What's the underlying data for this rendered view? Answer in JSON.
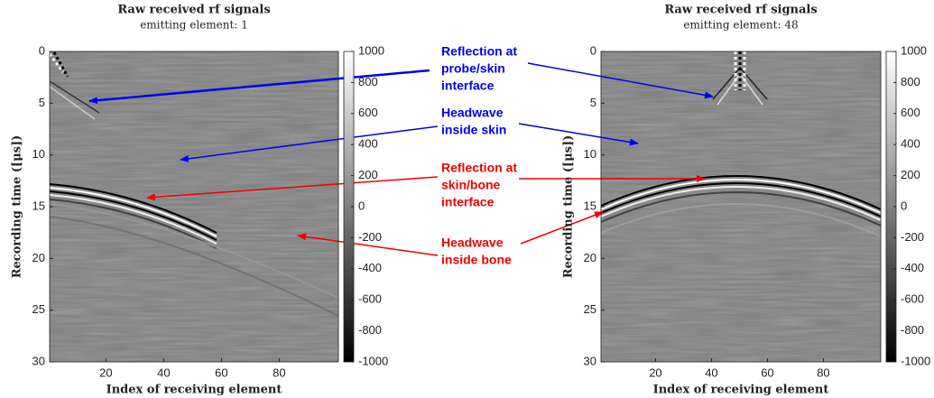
{
  "chart_data": [
    {
      "type": "image",
      "title": "Raw received rf signals",
      "subtitle": "emitting element: 1",
      "x_label": "Index of receiving element",
      "y_label": "Recording time ([μs])",
      "xlim": [
        0.5,
        100.5
      ],
      "xticks": [
        20,
        40,
        60,
        80
      ],
      "ylim": [
        0,
        30
      ],
      "yticks": [
        0,
        5,
        10,
        15,
        20,
        25,
        30
      ],
      "y_reversed": true,
      "clim": [
        -1000,
        1000
      ],
      "cticks": [
        -1000,
        -800,
        -600,
        -400,
        -200,
        0,
        200,
        400,
        600,
        800,
        1000
      ],
      "colormap": "gray"
    },
    {
      "type": "image",
      "title": "Raw received rf signals",
      "subtitle": "emitting element: 48",
      "x_label": "Index of receiving element",
      "y_label": "Recording time ([μs])",
      "xlim": [
        0.5,
        100.5
      ],
      "xticks": [
        20,
        40,
        60,
        80
      ],
      "ylim": [
        0,
        30
      ],
      "yticks": [
        0,
        5,
        10,
        15,
        20,
        25,
        30
      ],
      "y_reversed": true,
      "clim": [
        -1000,
        1000
      ],
      "cticks": [
        -1000,
        -800,
        -600,
        -400,
        -200,
        0,
        200,
        400,
        600,
        800,
        1000
      ],
      "colormap": "gray"
    }
  ],
  "annotations": [
    {
      "lines": [
        "Reflection at",
        "probe/skin",
        "interface"
      ],
      "color": "#0000ee"
    },
    {
      "lines": [
        "Headwave",
        "inside skin"
      ],
      "color": "#0000ee"
    },
    {
      "lines": [
        "Reflection at",
        "skin/bone",
        "interface"
      ],
      "color": "#ee0000"
    },
    {
      "lines": [
        "Headwave",
        "inside bone"
      ],
      "color": "#ee0000"
    }
  ]
}
